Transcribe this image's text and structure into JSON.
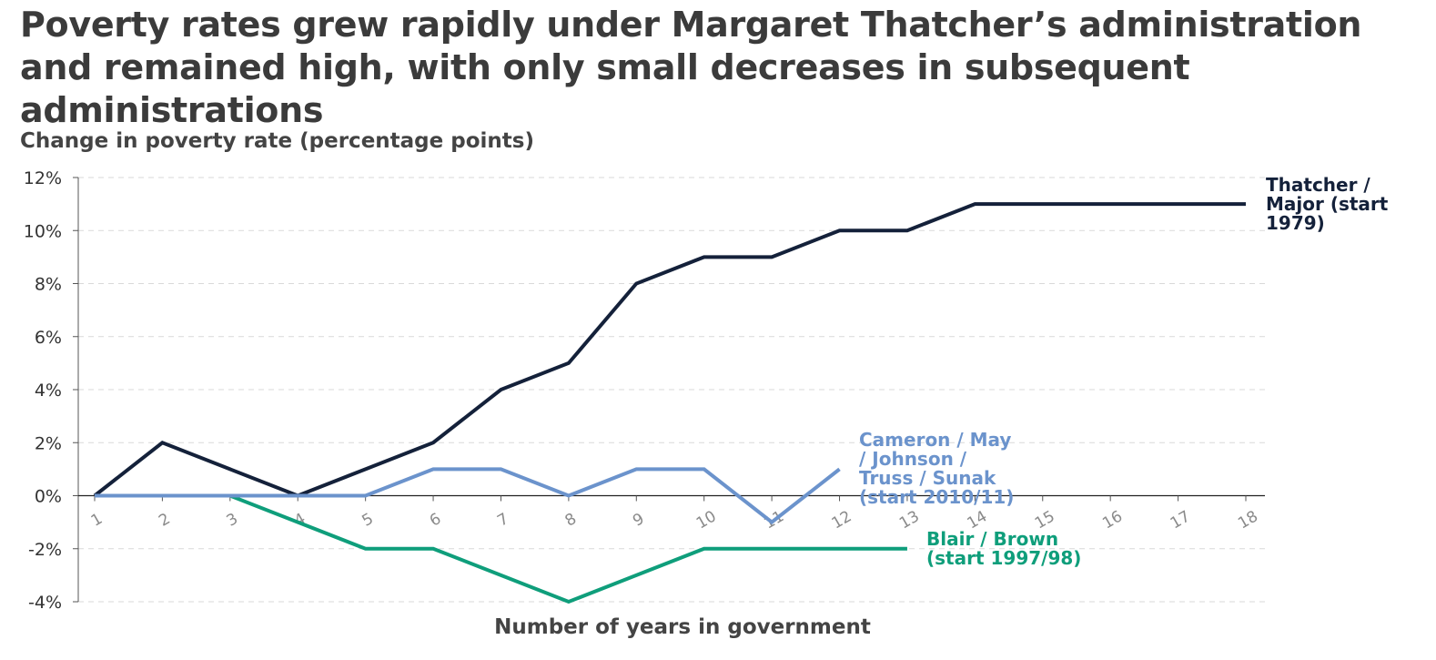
{
  "title": "Poverty rates grew rapidly under Margaret Thatcher’s administration and remained high, with only small decreases in subsequent administrations",
  "chart_data": {
    "type": "line",
    "ylabel": "Change in poverty rate (percentage points)",
    "xlabel": "Number of years in government",
    "ylim": [
      -4,
      12
    ],
    "xlim": [
      1,
      18
    ],
    "y_ticks": [
      "12%",
      "10%",
      "8%",
      "6%",
      "4%",
      "2%",
      "0%",
      "-2%",
      "-4%"
    ],
    "y_tick_values": [
      12,
      10,
      8,
      6,
      4,
      2,
      0,
      -2,
      -4
    ],
    "x_ticks": [
      "1",
      "2",
      "3",
      "4",
      "5",
      "6",
      "7",
      "8",
      "9",
      "10",
      "11",
      "12",
      "13",
      "14",
      "15",
      "16",
      "17",
      "18"
    ],
    "grid": "horizontal dashed",
    "series": [
      {
        "name": "Thatcher / Major (start 1979)",
        "label_lines": [
          "Thatcher /",
          "Major (start",
          "1979)"
        ],
        "color": "#14213a",
        "x": [
          1,
          2,
          3,
          4,
          5,
          6,
          7,
          8,
          9,
          10,
          11,
          12,
          13,
          14,
          15,
          16,
          17,
          18
        ],
        "values": [
          0,
          2,
          1,
          0,
          1,
          2,
          4,
          5,
          8,
          9,
          9,
          10,
          10,
          11,
          11,
          11,
          11,
          11
        ]
      },
      {
        "name": "Blair / Brown (start 1997/98)",
        "label_lines": [
          "Blair / Brown",
          "(start 1997/98)"
        ],
        "color": "#0f9e7b",
        "x": [
          1,
          2,
          3,
          4,
          5,
          6,
          7,
          8,
          9,
          10,
          11,
          12,
          13
        ],
        "values": [
          0,
          0,
          0,
          -1,
          -2,
          -2,
          -3,
          -4,
          -3,
          -2,
          -2,
          -2,
          -2
        ]
      },
      {
        "name": "Cameron / May / Johnson / Truss / Sunak (start 2010/11)",
        "label_lines": [
          "Cameron / May",
          "/ Johnson /",
          "Truss / Sunak",
          "(start 2010/11)"
        ],
        "color": "#6b93cc",
        "x": [
          1,
          2,
          3,
          4,
          5,
          6,
          7,
          8,
          9,
          10,
          11,
          12
        ],
        "values": [
          0,
          0,
          0,
          0,
          0,
          1,
          1,
          0,
          1,
          1,
          -1,
          1
        ]
      }
    ]
  }
}
